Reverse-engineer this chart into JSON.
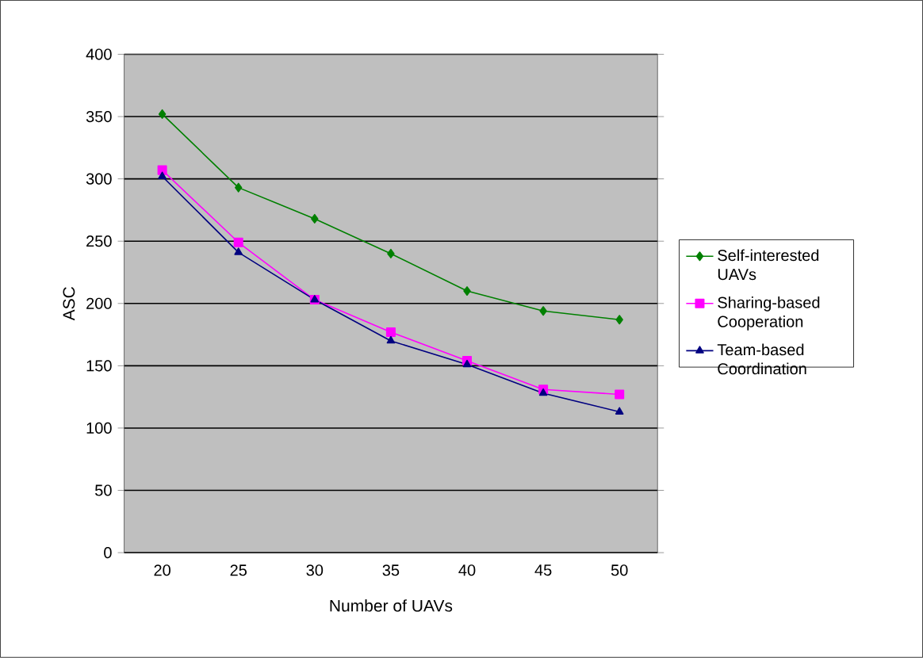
{
  "chart_data": {
    "type": "line",
    "xlabel": "Number of UAVs",
    "ylabel": "ASC",
    "categories": [
      "20",
      "25",
      "30",
      "35",
      "40",
      "45",
      "50"
    ],
    "ylim": [
      0,
      400
    ],
    "yticks": [
      0,
      50,
      100,
      150,
      200,
      250,
      300,
      350,
      400
    ],
    "grid": "y",
    "legend": "right",
    "series": [
      {
        "name": "Self-interested UAVs",
        "color": "#008000",
        "marker": "diamond",
        "values": [
          352,
          293,
          268,
          240,
          210,
          194,
          187
        ]
      },
      {
        "name": "Sharing-based Cooperation",
        "color": "#ff00ff",
        "marker": "square",
        "values": [
          307,
          249,
          203,
          177,
          154,
          131,
          127
        ]
      },
      {
        "name": "Team-based Coordination",
        "color": "#000080",
        "marker": "triangle",
        "values": [
          302,
          241,
          203,
          170,
          151,
          128,
          113
        ]
      }
    ]
  }
}
